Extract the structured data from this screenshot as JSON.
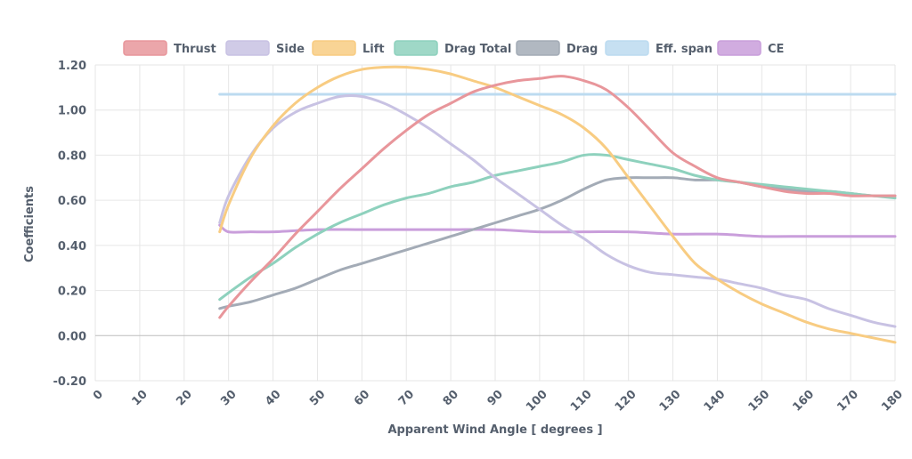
{
  "chart_data": {
    "type": "line",
    "xlabel": "Apparent Wind Angle [ degrees ]",
    "ylabel": "Coefficients",
    "xlim": [
      0,
      180
    ],
    "ylim": [
      -0.2,
      1.2
    ],
    "x_ticks": [
      0,
      10,
      20,
      30,
      40,
      50,
      60,
      70,
      80,
      90,
      100,
      110,
      120,
      130,
      140,
      150,
      160,
      170,
      180
    ],
    "y_ticks": [
      "-0.20",
      "0.00",
      "0.20",
      "0.40",
      "0.60",
      "0.80",
      "1.00",
      "1.20"
    ],
    "legend_position": "top-center",
    "grid": true,
    "series": [
      {
        "name": "Thrust",
        "color": "#e8969b",
        "points": [
          [
            28,
            0.08
          ],
          [
            30,
            0.13
          ],
          [
            35,
            0.24
          ],
          [
            40,
            0.34
          ],
          [
            45,
            0.45
          ],
          [
            50,
            0.55
          ],
          [
            55,
            0.65
          ],
          [
            60,
            0.74
          ],
          [
            65,
            0.83
          ],
          [
            70,
            0.91
          ],
          [
            75,
            0.98
          ],
          [
            80,
            1.03
          ],
          [
            85,
            1.08
          ],
          [
            90,
            1.11
          ],
          [
            95,
            1.13
          ],
          [
            100,
            1.14
          ],
          [
            105,
            1.15
          ],
          [
            110,
            1.13
          ],
          [
            115,
            1.09
          ],
          [
            120,
            1.01
          ],
          [
            125,
            0.91
          ],
          [
            130,
            0.81
          ],
          [
            135,
            0.75
          ],
          [
            140,
            0.7
          ],
          [
            145,
            0.68
          ],
          [
            150,
            0.66
          ],
          [
            155,
            0.64
          ],
          [
            160,
            0.63
          ],
          [
            165,
            0.63
          ],
          [
            170,
            0.62
          ],
          [
            175,
            0.62
          ],
          [
            180,
            0.62
          ]
        ]
      },
      {
        "name": "Side",
        "color": "#c8c2e3",
        "points": [
          [
            28,
            0.5
          ],
          [
            30,
            0.62
          ],
          [
            35,
            0.8
          ],
          [
            40,
            0.92
          ],
          [
            45,
            0.99
          ],
          [
            50,
            1.03
          ],
          [
            55,
            1.06
          ],
          [
            60,
            1.06
          ],
          [
            65,
            1.03
          ],
          [
            70,
            0.98
          ],
          [
            75,
            0.92
          ],
          [
            80,
            0.85
          ],
          [
            85,
            0.78
          ],
          [
            90,
            0.7
          ],
          [
            95,
            0.63
          ],
          [
            100,
            0.56
          ],
          [
            105,
            0.49
          ],
          [
            110,
            0.43
          ],
          [
            115,
            0.36
          ],
          [
            120,
            0.31
          ],
          [
            125,
            0.28
          ],
          [
            130,
            0.27
          ],
          [
            135,
            0.26
          ],
          [
            140,
            0.25
          ],
          [
            145,
            0.23
          ],
          [
            150,
            0.21
          ],
          [
            155,
            0.18
          ],
          [
            160,
            0.16
          ],
          [
            165,
            0.12
          ],
          [
            170,
            0.09
          ],
          [
            175,
            0.06
          ],
          [
            180,
            0.04
          ]
        ]
      },
      {
        "name": "Lift",
        "color": "#f8cc82",
        "points": [
          [
            28,
            0.46
          ],
          [
            30,
            0.58
          ],
          [
            35,
            0.79
          ],
          [
            40,
            0.93
          ],
          [
            45,
            1.03
          ],
          [
            50,
            1.1
          ],
          [
            55,
            1.15
          ],
          [
            60,
            1.18
          ],
          [
            65,
            1.19
          ],
          [
            70,
            1.19
          ],
          [
            75,
            1.18
          ],
          [
            80,
            1.16
          ],
          [
            85,
            1.13
          ],
          [
            90,
            1.1
          ],
          [
            95,
            1.06
          ],
          [
            100,
            1.02
          ],
          [
            105,
            0.98
          ],
          [
            110,
            0.92
          ],
          [
            115,
            0.83
          ],
          [
            120,
            0.7
          ],
          [
            125,
            0.57
          ],
          [
            130,
            0.44
          ],
          [
            135,
            0.32
          ],
          [
            140,
            0.25
          ],
          [
            145,
            0.19
          ],
          [
            150,
            0.14
          ],
          [
            155,
            0.1
          ],
          [
            160,
            0.06
          ],
          [
            165,
            0.03
          ],
          [
            170,
            0.01
          ],
          [
            175,
            -0.01
          ],
          [
            180,
            -0.03
          ]
        ]
      },
      {
        "name": "Drag Total",
        "color": "#8ed1bd",
        "points": [
          [
            28,
            0.16
          ],
          [
            30,
            0.19
          ],
          [
            35,
            0.26
          ],
          [
            40,
            0.32
          ],
          [
            45,
            0.39
          ],
          [
            50,
            0.45
          ],
          [
            55,
            0.5
          ],
          [
            60,
            0.54
          ],
          [
            65,
            0.58
          ],
          [
            70,
            0.61
          ],
          [
            75,
            0.63
          ],
          [
            80,
            0.66
          ],
          [
            85,
            0.68
          ],
          [
            90,
            0.71
          ],
          [
            95,
            0.73
          ],
          [
            100,
            0.75
          ],
          [
            105,
            0.77
          ],
          [
            110,
            0.8
          ],
          [
            115,
            0.8
          ],
          [
            120,
            0.78
          ],
          [
            125,
            0.76
          ],
          [
            130,
            0.74
          ],
          [
            135,
            0.71
          ],
          [
            140,
            0.69
          ],
          [
            145,
            0.68
          ],
          [
            150,
            0.67
          ],
          [
            155,
            0.66
          ],
          [
            160,
            0.65
          ],
          [
            165,
            0.64
          ],
          [
            170,
            0.63
          ],
          [
            175,
            0.62
          ],
          [
            180,
            0.61
          ]
        ]
      },
      {
        "name": "Drag",
        "color": "#a3abb6",
        "points": [
          [
            28,
            0.12
          ],
          [
            30,
            0.13
          ],
          [
            35,
            0.15
          ],
          [
            40,
            0.18
          ],
          [
            45,
            0.21
          ],
          [
            50,
            0.25
          ],
          [
            55,
            0.29
          ],
          [
            60,
            0.32
          ],
          [
            65,
            0.35
          ],
          [
            70,
            0.38
          ],
          [
            75,
            0.41
          ],
          [
            80,
            0.44
          ],
          [
            85,
            0.47
          ],
          [
            90,
            0.5
          ],
          [
            95,
            0.53
          ],
          [
            100,
            0.56
          ],
          [
            105,
            0.6
          ],
          [
            110,
            0.65
          ],
          [
            115,
            0.69
          ],
          [
            120,
            0.7
          ],
          [
            125,
            0.7
          ],
          [
            130,
            0.7
          ],
          [
            135,
            0.69
          ],
          [
            140,
            0.69
          ],
          [
            145,
            0.68
          ],
          [
            150,
            0.66
          ],
          [
            155,
            0.65
          ],
          [
            160,
            0.64
          ],
          [
            165,
            0.64
          ],
          [
            170,
            0.63
          ],
          [
            175,
            0.62
          ],
          [
            180,
            0.62
          ]
        ]
      },
      {
        "name": "Eff. span",
        "color": "#bcdbf0",
        "points": [
          [
            28,
            1.07
          ],
          [
            60,
            1.07
          ],
          [
            100,
            1.07
          ],
          [
            140,
            1.07
          ],
          [
            180,
            1.07
          ]
        ]
      },
      {
        "name": "CE",
        "color": "#c99edb",
        "points": [
          [
            28,
            0.49
          ],
          [
            30,
            0.46
          ],
          [
            35,
            0.46
          ],
          [
            40,
            0.46
          ],
          [
            50,
            0.47
          ],
          [
            60,
            0.47
          ],
          [
            70,
            0.47
          ],
          [
            80,
            0.47
          ],
          [
            90,
            0.47
          ],
          [
            100,
            0.46
          ],
          [
            110,
            0.46
          ],
          [
            120,
            0.46
          ],
          [
            130,
            0.45
          ],
          [
            140,
            0.45
          ],
          [
            150,
            0.44
          ],
          [
            160,
            0.44
          ],
          [
            170,
            0.44
          ],
          [
            180,
            0.44
          ]
        ]
      }
    ]
  }
}
